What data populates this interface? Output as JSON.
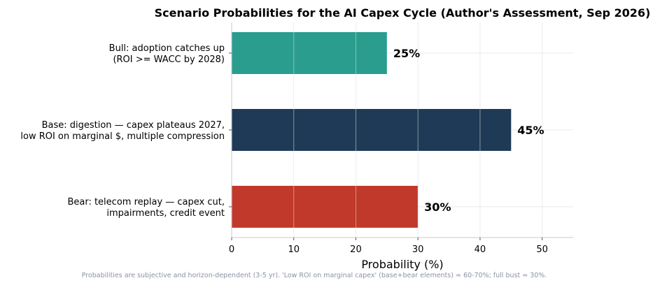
{
  "chart_data": {
    "type": "bar",
    "orientation": "horizontal",
    "title": "Scenario Probabilities for the AI Capex Cycle (Author's Assessment, Sep 2026)",
    "xlabel": "Probability (%)",
    "ylabel": "",
    "xlim": [
      0,
      55
    ],
    "xticks": [
      0,
      10,
      20,
      30,
      40,
      50
    ],
    "grid": true,
    "categories": [
      {
        "lines": [
          "Bull: adoption catches up",
          "(ROI >= WACC by 2028)"
        ]
      },
      {
        "lines": [
          "Base: digestion — capex plateaus 2027,",
          "low ROI on marginal $, multiple compression"
        ]
      },
      {
        "lines": [
          "Bear: telecom replay — capex cut,",
          "impairments, credit event"
        ]
      }
    ],
    "values": [
      25,
      45,
      30
    ],
    "value_labels": [
      "25%",
      "45%",
      "30%"
    ],
    "colors": [
      "#2a9d8f",
      "#1f3a56",
      "#c0392b"
    ],
    "footnote": "Probabilities are subjective and horizon-dependent (3-5 yr). 'Low ROI on marginal capex' (base+bear elements) ≈ 60-70%; full bust ≈ 30%."
  }
}
